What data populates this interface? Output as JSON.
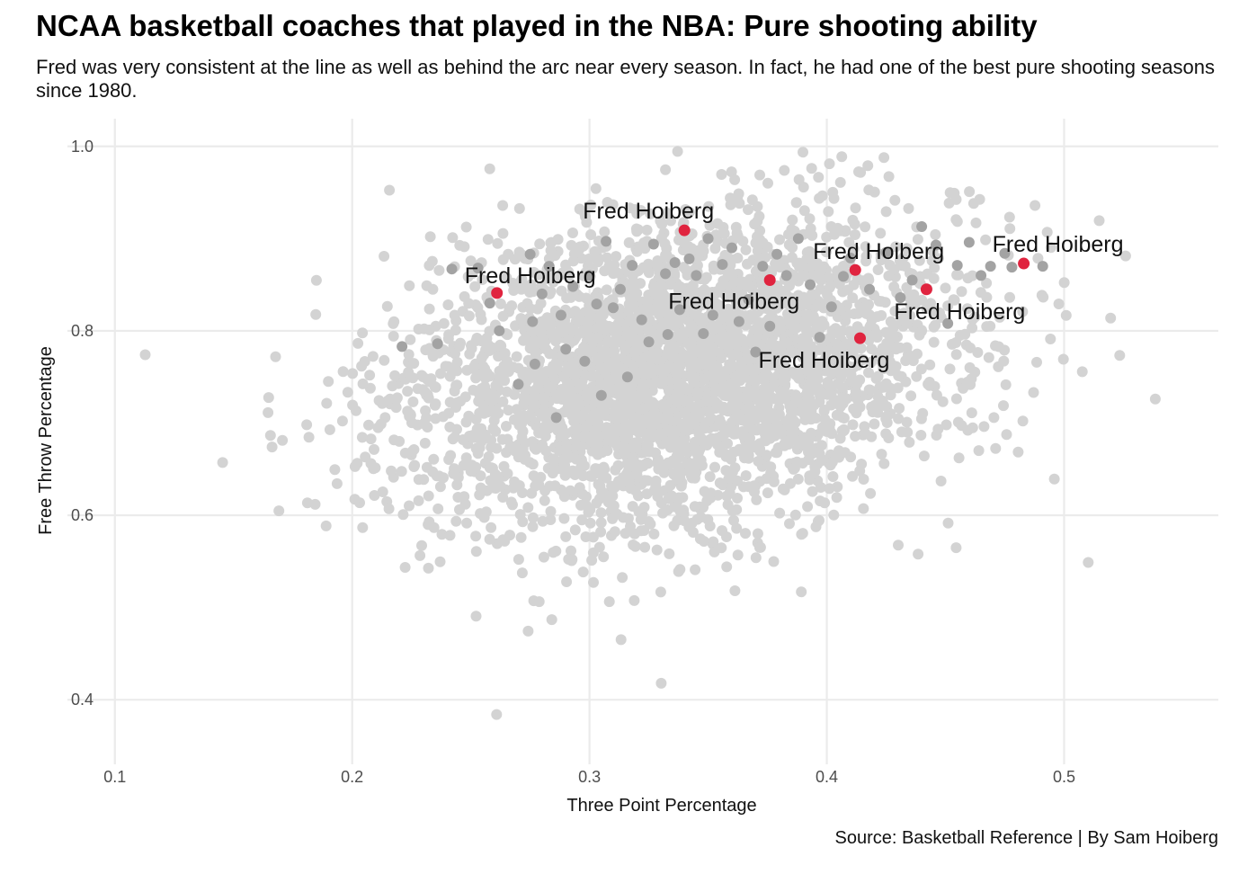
{
  "chart_data": {
    "type": "scatter",
    "title": "NCAA basketball coaches that played in the NBA: Pure shooting ability",
    "subtitle": "Fred was very consistent at the line as well as behind the arc near every season. In fact, he had one of the best pure shooting seasons since 1980.",
    "caption": "Source: Basketball Reference | By Sam Hoiberg",
    "xlabel": "Three Point Percentage",
    "ylabel": "Free Throw Percentage",
    "xlim": [
      0.08,
      0.565
    ],
    "ylim": [
      0.33,
      1.03
    ],
    "x_ticks": [
      {
        "v": 0.1,
        "label": "0.1"
      },
      {
        "v": 0.2,
        "label": "0.2"
      },
      {
        "v": 0.3,
        "label": "0.3"
      },
      {
        "v": 0.4,
        "label": "0.4"
      },
      {
        "v": 0.5,
        "label": "0.5"
      }
    ],
    "y_ticks": [
      {
        "v": 0.4,
        "label": "0.4"
      },
      {
        "v": 0.6,
        "label": "0.6"
      },
      {
        "v": 0.8,
        "label": "0.8"
      },
      {
        "v": 1.0,
        "label": "1.0"
      }
    ],
    "grid": true,
    "colors": {
      "background_points": "#d3d3d3",
      "coach_points": "#a3a3a3",
      "highlight": "#e0243f",
      "grid": "#ebebeb"
    },
    "highlight_series": {
      "name": "Fred Hoiberg",
      "points": [
        {
          "x": 0.261,
          "y": 0.841,
          "label": "Fred Hoiberg"
        },
        {
          "x": 0.34,
          "y": 0.909,
          "label": "Fred Hoiberg"
        },
        {
          "x": 0.376,
          "y": 0.855,
          "label": "Fred Hoiberg"
        },
        {
          "x": 0.412,
          "y": 0.866,
          "label": "Fred Hoiberg"
        },
        {
          "x": 0.414,
          "y": 0.792,
          "label": "Fred Hoiberg"
        },
        {
          "x": 0.442,
          "y": 0.845,
          "label": "Fred Hoiberg"
        },
        {
          "x": 0.483,
          "y": 0.873,
          "label": "Fred Hoiberg"
        }
      ]
    },
    "coach_points": [
      [
        0.253,
        0.868
      ],
      [
        0.258,
        0.83
      ],
      [
        0.262,
        0.8
      ],
      [
        0.27,
        0.742
      ],
      [
        0.275,
        0.883
      ],
      [
        0.276,
        0.81
      ],
      [
        0.277,
        0.764
      ],
      [
        0.28,
        0.84
      ],
      [
        0.283,
        0.87
      ],
      [
        0.286,
        0.706
      ],
      [
        0.288,
        0.817
      ],
      [
        0.29,
        0.78
      ],
      [
        0.293,
        0.848
      ],
      [
        0.298,
        0.767
      ],
      [
        0.3,
        0.86
      ],
      [
        0.303,
        0.829
      ],
      [
        0.305,
        0.73
      ],
      [
        0.307,
        0.897
      ],
      [
        0.31,
        0.825
      ],
      [
        0.313,
        0.845
      ],
      [
        0.316,
        0.75
      ],
      [
        0.318,
        0.871
      ],
      [
        0.322,
        0.812
      ],
      [
        0.325,
        0.788
      ],
      [
        0.327,
        0.894
      ],
      [
        0.332,
        0.862
      ],
      [
        0.333,
        0.796
      ],
      [
        0.336,
        0.874
      ],
      [
        0.338,
        0.823
      ],
      [
        0.342,
        0.878
      ],
      [
        0.345,
        0.86
      ],
      [
        0.348,
        0.797
      ],
      [
        0.35,
        0.9
      ],
      [
        0.352,
        0.817
      ],
      [
        0.356,
        0.872
      ],
      [
        0.36,
        0.89
      ],
      [
        0.363,
        0.81
      ],
      [
        0.367,
        0.834
      ],
      [
        0.37,
        0.777
      ],
      [
        0.373,
        0.87
      ],
      [
        0.376,
        0.805
      ],
      [
        0.379,
        0.883
      ],
      [
        0.383,
        0.86
      ],
      [
        0.388,
        0.9
      ],
      [
        0.393,
        0.85
      ],
      [
        0.397,
        0.793
      ],
      [
        0.402,
        0.826
      ],
      [
        0.407,
        0.859
      ],
      [
        0.41,
        0.879
      ],
      [
        0.418,
        0.845
      ],
      [
        0.425,
        0.885
      ],
      [
        0.431,
        0.836
      ],
      [
        0.436,
        0.855
      ],
      [
        0.44,
        0.913
      ],
      [
        0.446,
        0.893
      ],
      [
        0.451,
        0.808
      ],
      [
        0.455,
        0.871
      ],
      [
        0.46,
        0.896
      ],
      [
        0.465,
        0.86
      ],
      [
        0.469,
        0.87
      ],
      [
        0.475,
        0.884
      ],
      [
        0.478,
        0.869
      ],
      [
        0.491,
        0.87
      ],
      [
        0.221,
        0.783
      ],
      [
        0.236,
        0.786
      ],
      [
        0.242,
        0.867
      ]
    ]
  }
}
